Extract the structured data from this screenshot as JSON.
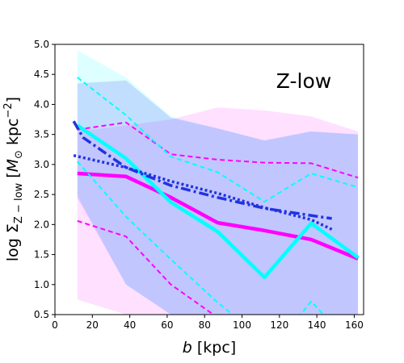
{
  "chart_data": {
    "type": "line",
    "title": "",
    "annotation": "Z-low",
    "xlabel": "b [kpc]",
    "ylabel": "log Σ_{Z−low} [M_⊙ kpc^{−2}]",
    "xlim": [
      0,
      165
    ],
    "ylim": [
      0.5,
      5.0
    ],
    "xticks": [
      0,
      20,
      40,
      60,
      80,
      100,
      120,
      140,
      160
    ],
    "yticks": [
      0.5,
      1.0,
      1.5,
      2.0,
      2.5,
      3.0,
      3.5,
      4.0,
      4.5,
      5.0
    ],
    "grid": false,
    "bands": [
      {
        "color": "#ff00ff",
        "opacity": 0.12,
        "x": [
          12,
          38,
          62,
          87,
          112,
          137,
          162
        ],
        "upper": [
          3.55,
          3.65,
          3.75,
          3.95,
          3.9,
          3.8,
          3.55
        ],
        "lower": [
          0.75,
          0.5,
          0.5,
          0.5,
          0.5,
          0.5,
          0.5
        ]
      },
      {
        "color": "#00ffff",
        "opacity": 0.13,
        "x": [
          12,
          38,
          62,
          87,
          112,
          137,
          162
        ],
        "upper": [
          4.9,
          4.45,
          3.8,
          3.6,
          3.4,
          3.55,
          3.5
        ],
        "lower": [
          2.5,
          1.0,
          0.5,
          0.5,
          0.5,
          0.5,
          0.5
        ]
      },
      {
        "color": "#0000ff",
        "opacity": 0.13,
        "x": [
          12,
          38,
          62,
          87,
          112,
          137,
          162
        ],
        "upper": [
          4.35,
          4.4,
          3.78,
          3.6,
          3.4,
          3.55,
          3.5
        ],
        "lower": [
          2.45,
          1.0,
          0.5,
          0.5,
          0.5,
          0.5,
          0.5
        ]
      }
    ],
    "series": [
      {
        "color": "#ff00ff",
        "width": 4.5,
        "dash": "",
        "x": [
          12,
          38,
          62,
          87,
          112,
          137,
          162
        ],
        "y": [
          2.85,
          2.8,
          2.45,
          2.03,
          1.9,
          1.75,
          1.43
        ]
      },
      {
        "color": "#ff00ff",
        "width": 2,
        "dash": "6,4",
        "x": [
          12,
          38,
          62,
          87,
          112,
          137,
          162
        ],
        "y": [
          3.58,
          3.7,
          3.17,
          3.08,
          3.03,
          3.02,
          2.78
        ]
      },
      {
        "color": "#ff00ff",
        "width": 2,
        "dash": "6,4",
        "x": [
          12,
          38,
          62,
          87
        ],
        "y": [
          2.06,
          1.8,
          1.0,
          0.45
        ]
      },
      {
        "color": "#00ffff",
        "width": 4.5,
        "dash": "",
        "x": [
          12,
          38,
          62,
          87,
          112,
          137,
          162
        ],
        "y": [
          3.65,
          3.1,
          2.37,
          1.88,
          1.12,
          2.02,
          1.45
        ]
      },
      {
        "color": "#00ffff",
        "width": 2,
        "dash": "6,4",
        "x": [
          12,
          38,
          62,
          87,
          112,
          137,
          162
        ],
        "y": [
          4.45,
          3.82,
          3.13,
          2.87,
          2.38,
          2.85,
          2.62
        ]
      },
      {
        "color": "#00ffff",
        "width": 2,
        "dash": "6,4",
        "x": [
          12,
          38,
          62,
          87,
          97
        ],
        "y": [
          3.05,
          2.13,
          1.42,
          0.7,
          0.45
        ]
      },
      {
        "color": "#00ffff",
        "width": 2,
        "dash": "6,4",
        "x": [
          130,
          137,
          145
        ],
        "y": [
          0.45,
          0.72,
          0.45
        ]
      },
      {
        "color": "#2233e0",
        "width": 3.5,
        "dash": "12,4,3,4",
        "x": [
          10,
          15,
          38,
          62,
          87,
          112,
          137,
          148
        ],
        "y": [
          3.72,
          3.45,
          2.95,
          2.65,
          2.45,
          2.27,
          2.15,
          2.1
        ]
      },
      {
        "color": "#2233e0",
        "width": 3.5,
        "dash": "3,3",
        "x": [
          10,
          38,
          62,
          87,
          112,
          137,
          148
        ],
        "y": [
          3.15,
          2.95,
          2.72,
          2.52,
          2.28,
          2.08,
          1.92
        ]
      }
    ]
  }
}
